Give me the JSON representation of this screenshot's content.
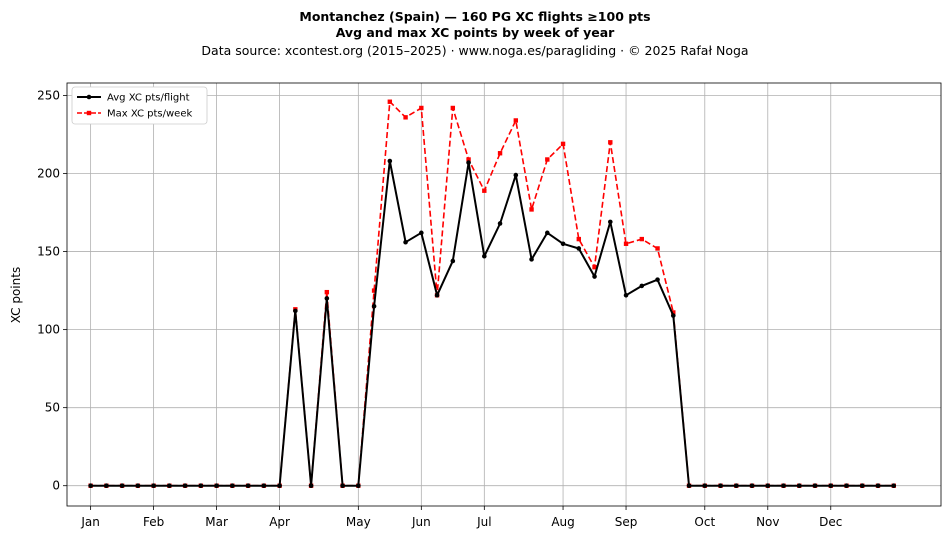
{
  "chart_data": {
    "type": "line",
    "title_line1": "Montanchez (Spain)  —  160 PG XC flights ≥100 pts",
    "title_line2": "Avg and max XC points by week of year",
    "subtitle": "Data source: xcontest.org (2015–2025)  ·  www.noga.es/paragliding  ·  © 2025 Rafał Noga",
    "ylabel": "XC points",
    "xlabel": "",
    "x_axis": "week of year",
    "xlim": [
      -1.5,
      54
    ],
    "ylim": [
      -13,
      258
    ],
    "x_ticks": [
      {
        "label": "Jan",
        "week": 0
      },
      {
        "label": "Feb",
        "week": 4
      },
      {
        "label": "Mar",
        "week": 8
      },
      {
        "label": "Apr",
        "week": 12
      },
      {
        "label": "May",
        "week": 17
      },
      {
        "label": "Jun",
        "week": 21
      },
      {
        "label": "Jul",
        "week": 25
      },
      {
        "label": "Aug",
        "week": 30
      },
      {
        "label": "Sep",
        "week": 34
      },
      {
        "label": "Oct",
        "week": 39
      },
      {
        "label": "Nov",
        "week": 43
      },
      {
        "label": "Dec",
        "week": 47
      }
    ],
    "y_ticks": [
      0,
      50,
      100,
      150,
      200,
      250
    ],
    "grid": true,
    "legend_position": "top-left",
    "weeks": [
      0,
      1,
      2,
      3,
      4,
      5,
      6,
      7,
      8,
      9,
      10,
      11,
      12,
      13,
      14,
      15,
      16,
      17,
      18,
      19,
      20,
      21,
      22,
      23,
      24,
      25,
      26,
      27,
      28,
      29,
      30,
      31,
      32,
      33,
      34,
      35,
      36,
      37,
      38,
      39,
      40,
      41,
      42,
      43,
      44,
      45,
      46,
      47,
      48,
      49,
      50,
      51
    ],
    "series": [
      {
        "name": "Avg XC pts/flight",
        "color": "#000000",
        "style": "solid",
        "marker": "circle",
        "values": [
          0,
          0,
          0,
          0,
          0,
          0,
          0,
          0,
          0,
          0,
          0,
          0,
          0,
          112,
          0,
          120,
          0,
          0,
          115,
          208,
          156,
          162,
          122,
          144,
          207,
          147,
          168,
          199,
          145,
          162,
          155,
          152,
          134,
          169,
          122,
          128,
          132,
          109,
          0,
          0,
          0,
          0,
          0,
          0,
          0,
          0,
          0,
          0,
          0,
          0,
          0,
          0
        ]
      },
      {
        "name": "Max XC pts/week",
        "color": "#ff0000",
        "style": "dashed",
        "marker": "square",
        "values": [
          0,
          0,
          0,
          0,
          0,
          0,
          0,
          0,
          0,
          0,
          0,
          0,
          0,
          113,
          0,
          124,
          0,
          0,
          125,
          246,
          236,
          242,
          122,
          242,
          209,
          189,
          213,
          234,
          177,
          209,
          219,
          158,
          140,
          220,
          155,
          158,
          152,
          111,
          0,
          0,
          0,
          0,
          0,
          0,
          0,
          0,
          0,
          0,
          0,
          0,
          0,
          0
        ]
      }
    ]
  }
}
